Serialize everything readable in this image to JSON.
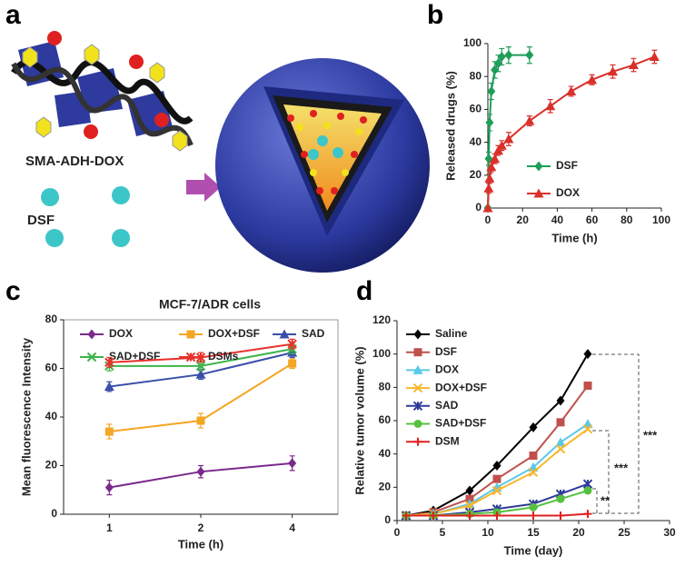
{
  "figure": {
    "panel_labels": [
      "a",
      "b",
      "c",
      "d"
    ],
    "diagram": {
      "polymer_label": "SMA-ADH-DOX",
      "drug_label": "DSF"
    }
  },
  "chart_data": [
    {
      "type": "line",
      "xlabel": "Time (h)",
      "ylabel": "Released drugs (%)",
      "xlim": [
        0,
        100
      ],
      "xticks": [
        0,
        20,
        40,
        60,
        80,
        100
      ],
      "ylim": [
        0,
        100
      ],
      "yticks": [
        0,
        20,
        40,
        60,
        80,
        100
      ],
      "legend": "right",
      "series": [
        {
          "name": "DSF",
          "color": "#1f9e5a",
          "marker": "diamond",
          "x": [
            0,
            0.5,
            1,
            2,
            4,
            6,
            8,
            12,
            24
          ],
          "values": [
            0,
            30,
            52,
            71,
            84,
            88,
            92,
            93,
            93
          ],
          "errors": [
            0,
            4,
            5,
            5,
            5,
            5,
            5,
            5,
            5
          ]
        },
        {
          "name": "DOX",
          "color": "#d9302a",
          "marker": "triangle",
          "x": [
            0,
            0.5,
            1,
            2,
            4,
            6,
            8,
            12,
            24,
            36,
            48,
            60,
            72,
            84,
            96
          ],
          "values": [
            0,
            12,
            18,
            25,
            30,
            35,
            38,
            42,
            53,
            62,
            71,
            78,
            83,
            87,
            92
          ],
          "errors": [
            0,
            3,
            3,
            3,
            3,
            3,
            3,
            4,
            3,
            4,
            3,
            3,
            4,
            4,
            4
          ]
        }
      ]
    },
    {
      "type": "line",
      "title": "MCF-7/ADR cells",
      "xlabel": "Time (h)",
      "ylabel": "Mean fluorescence Intensity",
      "categories": [
        "1",
        "2",
        "4"
      ],
      "ylim": [
        0,
        80
      ],
      "yticks": [
        0,
        20,
        40,
        60,
        80
      ],
      "legend": "top",
      "series": [
        {
          "name": "DOX",
          "color": "#7b2a8c",
          "marker": "diamond",
          "values": [
            11,
            17.5,
            21
          ],
          "errors": [
            3,
            2.5,
            3
          ]
        },
        {
          "name": "DOX+DSF",
          "color": "#f5a623",
          "marker": "square",
          "values": [
            34,
            38.5,
            62
          ],
          "errors": [
            3,
            3,
            2
          ]
        },
        {
          "name": "SAD",
          "color": "#3a4fa8",
          "marker": "triangle",
          "values": [
            52.5,
            57.5,
            66.5
          ],
          "errors": [
            2,
            2,
            2
          ]
        },
        {
          "name": "SAD+DSF",
          "color": "#3cb44b",
          "marker": "x",
          "values": [
            61,
            61,
            68
          ],
          "errors": [
            2,
            2,
            2
          ]
        },
        {
          "name": "DSMs",
          "color": "#e8302a",
          "marker": "star",
          "values": [
            62.5,
            64.5,
            70
          ],
          "errors": [
            2,
            2,
            2
          ]
        }
      ]
    },
    {
      "type": "line",
      "xlabel": "Time (day)",
      "ylabel": "Relative tumor volume (%)",
      "xlim": [
        0,
        30
      ],
      "xticks": [
        0,
        5,
        10,
        15,
        20,
        25,
        30
      ],
      "ylim": [
        0,
        120
      ],
      "yticks": [
        0,
        20,
        40,
        60,
        80,
        100,
        120
      ],
      "legend": "upper left",
      "annotations": [
        "***",
        "***",
        "**"
      ],
      "series": [
        {
          "name": "Saline",
          "color": "#000000",
          "marker": "diamond",
          "x": [
            1,
            4,
            8,
            11,
            15,
            18,
            21
          ],
          "values": [
            3,
            6,
            18,
            33,
            56,
            72,
            100
          ]
        },
        {
          "name": "DSF",
          "color": "#c0504d",
          "marker": "square",
          "x": [
            1,
            4,
            8,
            11,
            15,
            18,
            21
          ],
          "values": [
            3,
            5,
            13,
            25,
            39,
            59,
            81
          ]
        },
        {
          "name": "DOX",
          "color": "#5bc8e8",
          "marker": "triangle",
          "x": [
            1,
            4,
            8,
            11,
            15,
            18,
            21
          ],
          "values": [
            3,
            4,
            10,
            20,
            32,
            47,
            58
          ]
        },
        {
          "name": "DOX+DSF",
          "color": "#f8b62b",
          "marker": "x",
          "x": [
            1,
            4,
            8,
            11,
            15,
            18,
            21
          ],
          "values": [
            3,
            4,
            9,
            18,
            29,
            43,
            55
          ]
        },
        {
          "name": "SAD",
          "color": "#2f3b9a",
          "marker": "star",
          "x": [
            1,
            4,
            8,
            11,
            15,
            18,
            21
          ],
          "values": [
            3,
            3,
            5,
            7,
            10,
            16,
            22
          ]
        },
        {
          "name": "SAD+DSF",
          "color": "#56c13d",
          "marker": "circle",
          "x": [
            1,
            4,
            8,
            11,
            15,
            18,
            21
          ],
          "values": [
            3,
            3,
            4,
            5,
            8,
            13,
            18
          ]
        },
        {
          "name": "DSM",
          "color": "#e02020",
          "marker": "plus",
          "x": [
            1,
            4,
            8,
            11,
            15,
            18,
            21
          ],
          "values": [
            3,
            3,
            3,
            3,
            3,
            3,
            4
          ]
        }
      ]
    }
  ]
}
